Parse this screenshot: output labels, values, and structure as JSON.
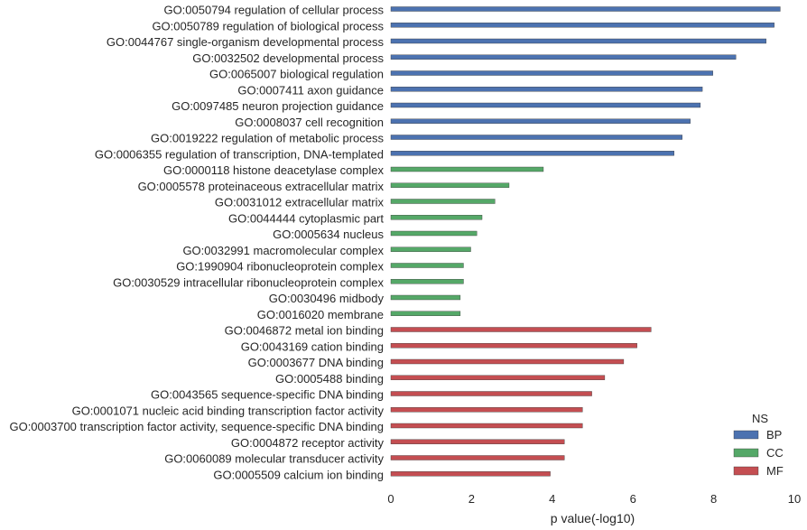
{
  "chart_data": {
    "type": "bar",
    "orientation": "horizontal",
    "xlabel": "p value(-log10)",
    "xlim": [
      0,
      10
    ],
    "xticks": [
      0,
      2,
      4,
      6,
      8,
      10
    ],
    "grid": false,
    "legend": {
      "title": "NS",
      "position": "bottom-right",
      "entries": [
        {
          "name": "BP",
          "color": "#4c72b0"
        },
        {
          "name": "CC",
          "color": "#55a868"
        },
        {
          "name": "MF",
          "color": "#c44e52"
        }
      ]
    },
    "categories": [
      "GO:0050794 regulation of cellular process",
      "GO:0050789 regulation of biological process",
      "GO:0044767 single-organism developmental process",
      "GO:0032502 developmental process",
      "GO:0065007 biological regulation",
      "GO:0007411 axon guidance",
      "GO:0097485 neuron projection guidance",
      "GO:0008037 cell recognition",
      "GO:0019222 regulation of metabolic process",
      "GO:0006355 regulation of transcription, DNA-templated",
      "GO:0000118 histone deacetylase complex",
      "GO:0005578 proteinaceous extracellular matrix",
      "GO:0031012 extracellular matrix",
      "GO:0044444 cytoplasmic part",
      "GO:0005634 nucleus",
      "GO:0032991 macromolecular complex",
      "GO:1990904 ribonucleoprotein complex",
      "GO:0030529 intracellular ribonucleoprotein complex",
      "GO:0030496 midbody",
      "GO:0016020 membrane",
      "GO:0046872 metal ion binding",
      "GO:0043169 cation binding",
      "GO:0003677 DNA binding",
      "GO:0005488 binding",
      "GO:0043565 sequence-specific DNA binding",
      "GO:0001071 nucleic acid binding transcription factor activity",
      "GO:0003700 transcription factor activity, sequence-specific DNA binding",
      "GO:0004872 receptor activity",
      "GO:0060089 molecular transducer activity",
      "GO:0005509 calcium ion binding"
    ],
    "values": [
      9.65,
      9.5,
      9.3,
      8.55,
      7.98,
      7.72,
      7.67,
      7.42,
      7.22,
      7.02,
      3.78,
      2.93,
      2.58,
      2.26,
      2.13,
      1.98,
      1.8,
      1.8,
      1.72,
      1.72,
      6.45,
      6.1,
      5.77,
      5.3,
      4.98,
      4.75,
      4.75,
      4.3,
      4.3,
      3.95
    ],
    "groups": [
      "BP",
      "BP",
      "BP",
      "BP",
      "BP",
      "BP",
      "BP",
      "BP",
      "BP",
      "BP",
      "CC",
      "CC",
      "CC",
      "CC",
      "CC",
      "CC",
      "CC",
      "CC",
      "CC",
      "CC",
      "MF",
      "MF",
      "MF",
      "MF",
      "MF",
      "MF",
      "MF",
      "MF",
      "MF",
      "MF"
    ]
  }
}
